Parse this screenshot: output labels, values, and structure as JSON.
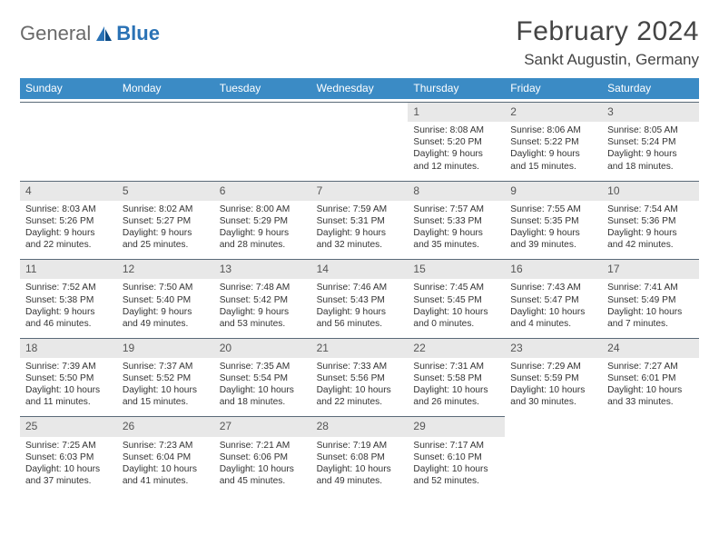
{
  "logo": {
    "general": "General",
    "blue": "Blue"
  },
  "title": "February 2024",
  "location": "Sankt Augustin, Germany",
  "header_bg": "#3b8bc5",
  "daynum_bg": "#e8e8e8",
  "border_color": "#5a6a78",
  "text_color": "#333333",
  "font_size_body": 10.2,
  "font_size_daynum": 12,
  "font_size_dow": 12,
  "font_size_title": 30,
  "font_size_location": 17,
  "dow": [
    "Sunday",
    "Monday",
    "Tuesday",
    "Wednesday",
    "Thursday",
    "Friday",
    "Saturday"
  ],
  "weeks": [
    [
      null,
      null,
      null,
      null,
      {
        "n": "1",
        "sr": "8:08 AM",
        "ss": "5:20 PM",
        "dh": "9",
        "dm": "12"
      },
      {
        "n": "2",
        "sr": "8:06 AM",
        "ss": "5:22 PM",
        "dh": "9",
        "dm": "15"
      },
      {
        "n": "3",
        "sr": "8:05 AM",
        "ss": "5:24 PM",
        "dh": "9",
        "dm": "18"
      }
    ],
    [
      {
        "n": "4",
        "sr": "8:03 AM",
        "ss": "5:26 PM",
        "dh": "9",
        "dm": "22"
      },
      {
        "n": "5",
        "sr": "8:02 AM",
        "ss": "5:27 PM",
        "dh": "9",
        "dm": "25"
      },
      {
        "n": "6",
        "sr": "8:00 AM",
        "ss": "5:29 PM",
        "dh": "9",
        "dm": "28"
      },
      {
        "n": "7",
        "sr": "7:59 AM",
        "ss": "5:31 PM",
        "dh": "9",
        "dm": "32"
      },
      {
        "n": "8",
        "sr": "7:57 AM",
        "ss": "5:33 PM",
        "dh": "9",
        "dm": "35"
      },
      {
        "n": "9",
        "sr": "7:55 AM",
        "ss": "5:35 PM",
        "dh": "9",
        "dm": "39"
      },
      {
        "n": "10",
        "sr": "7:54 AM",
        "ss": "5:36 PM",
        "dh": "9",
        "dm": "42"
      }
    ],
    [
      {
        "n": "11",
        "sr": "7:52 AM",
        "ss": "5:38 PM",
        "dh": "9",
        "dm": "46"
      },
      {
        "n": "12",
        "sr": "7:50 AM",
        "ss": "5:40 PM",
        "dh": "9",
        "dm": "49"
      },
      {
        "n": "13",
        "sr": "7:48 AM",
        "ss": "5:42 PM",
        "dh": "9",
        "dm": "53"
      },
      {
        "n": "14",
        "sr": "7:46 AM",
        "ss": "5:43 PM",
        "dh": "9",
        "dm": "56"
      },
      {
        "n": "15",
        "sr": "7:45 AM",
        "ss": "5:45 PM",
        "dh": "10",
        "dm": "0"
      },
      {
        "n": "16",
        "sr": "7:43 AM",
        "ss": "5:47 PM",
        "dh": "10",
        "dm": "4"
      },
      {
        "n": "17",
        "sr": "7:41 AM",
        "ss": "5:49 PM",
        "dh": "10",
        "dm": "7"
      }
    ],
    [
      {
        "n": "18",
        "sr": "7:39 AM",
        "ss": "5:50 PM",
        "dh": "10",
        "dm": "11"
      },
      {
        "n": "19",
        "sr": "7:37 AM",
        "ss": "5:52 PM",
        "dh": "10",
        "dm": "15"
      },
      {
        "n": "20",
        "sr": "7:35 AM",
        "ss": "5:54 PM",
        "dh": "10",
        "dm": "18"
      },
      {
        "n": "21",
        "sr": "7:33 AM",
        "ss": "5:56 PM",
        "dh": "10",
        "dm": "22"
      },
      {
        "n": "22",
        "sr": "7:31 AM",
        "ss": "5:58 PM",
        "dh": "10",
        "dm": "26"
      },
      {
        "n": "23",
        "sr": "7:29 AM",
        "ss": "5:59 PM",
        "dh": "10",
        "dm": "30"
      },
      {
        "n": "24",
        "sr": "7:27 AM",
        "ss": "6:01 PM",
        "dh": "10",
        "dm": "33"
      }
    ],
    [
      {
        "n": "25",
        "sr": "7:25 AM",
        "ss": "6:03 PM",
        "dh": "10",
        "dm": "37"
      },
      {
        "n": "26",
        "sr": "7:23 AM",
        "ss": "6:04 PM",
        "dh": "10",
        "dm": "41"
      },
      {
        "n": "27",
        "sr": "7:21 AM",
        "ss": "6:06 PM",
        "dh": "10",
        "dm": "45"
      },
      {
        "n": "28",
        "sr": "7:19 AM",
        "ss": "6:08 PM",
        "dh": "10",
        "dm": "49"
      },
      {
        "n": "29",
        "sr": "7:17 AM",
        "ss": "6:10 PM",
        "dh": "10",
        "dm": "52"
      },
      null,
      null
    ]
  ],
  "labels": {
    "sunrise": "Sunrise:",
    "sunset": "Sunset:",
    "daylight": "Daylight:",
    "hours": "hours",
    "and": "and",
    "minutes": "minutes."
  }
}
